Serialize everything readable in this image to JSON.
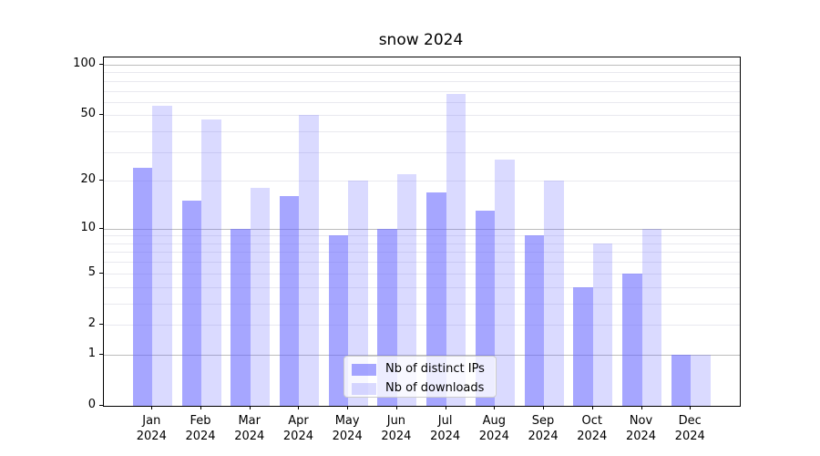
{
  "chart_data": {
    "type": "bar",
    "title": "snow 2024",
    "x_axis": {
      "months": [
        "Jan",
        "Feb",
        "Mar",
        "Apr",
        "May",
        "Jun",
        "Jul",
        "Aug",
        "Sep",
        "Oct",
        "Nov",
        "Dec"
      ],
      "year": "2024"
    },
    "y_axis": {
      "scale": "log1p",
      "tick_labels": [
        "100",
        "50",
        "20",
        "10",
        "5",
        "2",
        "1",
        "0"
      ],
      "tick_values": [
        100,
        50,
        20,
        10,
        5,
        2,
        1,
        0
      ],
      "major_gridlines": [
        1,
        10,
        100
      ],
      "minor_gridlines": [
        2,
        3,
        4,
        5,
        6,
        7,
        8,
        9,
        20,
        30,
        40,
        50,
        60,
        70,
        80,
        90
      ],
      "ylim": [
        0,
        110.5
      ]
    },
    "series": [
      {
        "name": "Nb of distinct IPs",
        "values": [
          24,
          15,
          10,
          16,
          9,
          10,
          17,
          13,
          9,
          4,
          5,
          1
        ],
        "color": "rgba(102,102,255,0.58)"
      },
      {
        "name": "Nb of downloads",
        "values": [
          57,
          47,
          18,
          50,
          20,
          22,
          67,
          27,
          20,
          8,
          10,
          1
        ],
        "color": "rgba(102,102,255,0.24)"
      }
    ],
    "legend_position": "lower center"
  },
  "colors": {
    "grid_minor": "#e9e9ef",
    "grid_major": "#bdbdbd",
    "spine": "#000000",
    "legend_border": "#cccccc",
    "text": "#000000"
  }
}
